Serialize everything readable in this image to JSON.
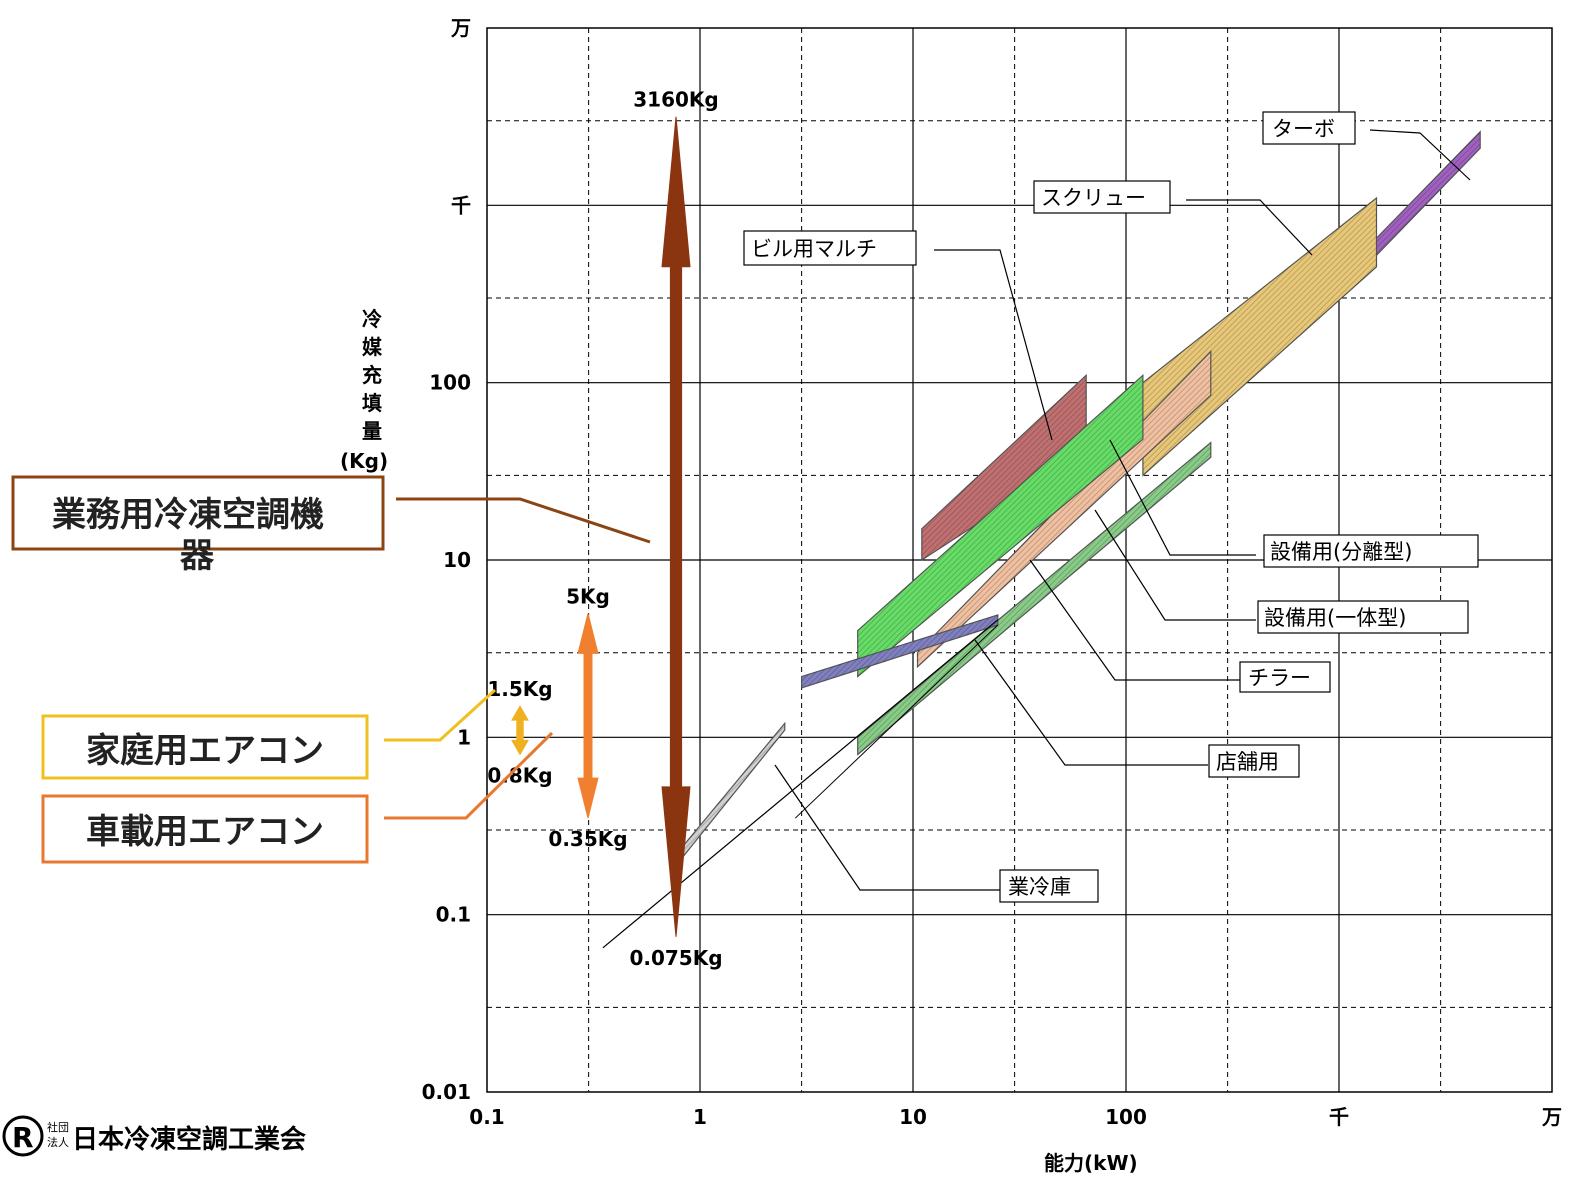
{
  "chart_data": {
    "type": "area",
    "xlabel": "能力(kW)",
    "ylabel": "冷媒充填量(Kg)",
    "x_scale": "log",
    "y_scale": "log",
    "xlim": [
      0.1,
      10000
    ],
    "ylim": [
      0.01,
      10000
    ],
    "grid": true,
    "x_ticks": [
      {
        "value": 0.1,
        "label": "0.1"
      },
      {
        "value": 1,
        "label": "1"
      },
      {
        "value": 10,
        "label": "10"
      },
      {
        "value": 100,
        "label": "100"
      },
      {
        "value": 1000,
        "label": "千"
      },
      {
        "value": 10000,
        "label": "万"
      }
    ],
    "y_ticks": [
      {
        "value": 0.01,
        "label": "0.01"
      },
      {
        "value": 0.1,
        "label": "0.1"
      },
      {
        "value": 1,
        "label": "1"
      },
      {
        "value": 10,
        "label": "10"
      },
      {
        "value": 100,
        "label": "100"
      },
      {
        "value": 1000,
        "label": "千"
      },
      {
        "value": 10000,
        "label": "万"
      }
    ],
    "series": [
      {
        "name": "ターボ",
        "color": "#a060c0",
        "polygon": [
          [
            1400,
            600
          ],
          [
            4600,
            2600
          ],
          [
            4600,
            2100
          ],
          [
            1400,
            480
          ]
        ]
      },
      {
        "name": "スクリュー",
        "color": "#e8c878",
        "polygon": [
          [
            120,
            30
          ],
          [
            1500,
            450
          ],
          [
            1500,
            1100
          ],
          [
            120,
            100
          ]
        ]
      },
      {
        "name": "ビル用マルチ",
        "color": "#c07070",
        "polygon": [
          [
            11,
            10
          ],
          [
            65,
            40
          ],
          [
            65,
            110
          ],
          [
            11,
            15
          ]
        ]
      },
      {
        "name": "設備用(分離型)",
        "color": "#f0c0a0",
        "polygon": [
          [
            10.5,
            2.5
          ],
          [
            250,
            85
          ],
          [
            250,
            150
          ],
          [
            10.5,
            3
          ]
        ]
      },
      {
        "name": "設備用(一体型)",
        "color": "#66dd66",
        "polygon": [
          [
            5.5,
            2.2
          ],
          [
            120,
            48
          ],
          [
            120,
            110
          ],
          [
            5.5,
            4
          ]
        ]
      },
      {
        "name": "チラー",
        "color": "#88cc88",
        "polygon": [
          [
            5.5,
            0.8
          ],
          [
            250,
            38
          ],
          [
            250,
            46
          ],
          [
            5.5,
            1
          ]
        ]
      },
      {
        "name": "店舗用",
        "color": "#8080c0",
        "polygon": [
          [
            3,
            1.9
          ],
          [
            25,
            4.3
          ],
          [
            25,
            4.9
          ],
          [
            3,
            2.2
          ]
        ]
      },
      {
        "name": "業冷庫",
        "color": "#d0d0d0",
        "polygon": [
          [
            0.8,
            0.2
          ],
          [
            2.5,
            1.1
          ],
          [
            2.5,
            1.2
          ],
          [
            0.8,
            0.23
          ]
        ]
      }
    ],
    "ranges": [
      {
        "name": "業務用冷凍空調機器",
        "min": 0.075,
        "max": 3160,
        "min_label": "0.075Kg",
        "max_label": "3160Kg",
        "color": "#8b3510",
        "x": 0.75
      },
      {
        "name": "車載用エアコン",
        "min": 0.35,
        "max": 5,
        "min_label": "0.35Kg",
        "max_label": "5Kg",
        "color": "#f08030",
        "x": 0.28
      },
      {
        "name": "家庭用エアコン",
        "min": 0.8,
        "max": 1.5,
        "min_label": "0.8Kg",
        "max_label": "1.5Kg",
        "color": "#f0b020",
        "x": 0.2
      }
    ]
  },
  "callouts": {
    "turbo": "ターボ",
    "screw": "スクリュー",
    "building": "ビル用マルチ",
    "split": "設備用(分離型)",
    "integral": "設備用(一体型)",
    "chiller": "チラー",
    "store": "店舗用",
    "cold": "業冷庫"
  },
  "boxes": {
    "commercial": "業務用冷凍空調機",
    "commercial_wrap": "器",
    "home": "家庭用エアコン",
    "car": "車載用エアコン"
  },
  "logo": {
    "mark": "R",
    "small_top": "社団",
    "small_bottom": "法人",
    "name": "日本冷凍空調工業会"
  },
  "colors": {
    "commercial_border": "#8b4513",
    "home_border": "#f0c020",
    "car_border": "#e87830"
  }
}
